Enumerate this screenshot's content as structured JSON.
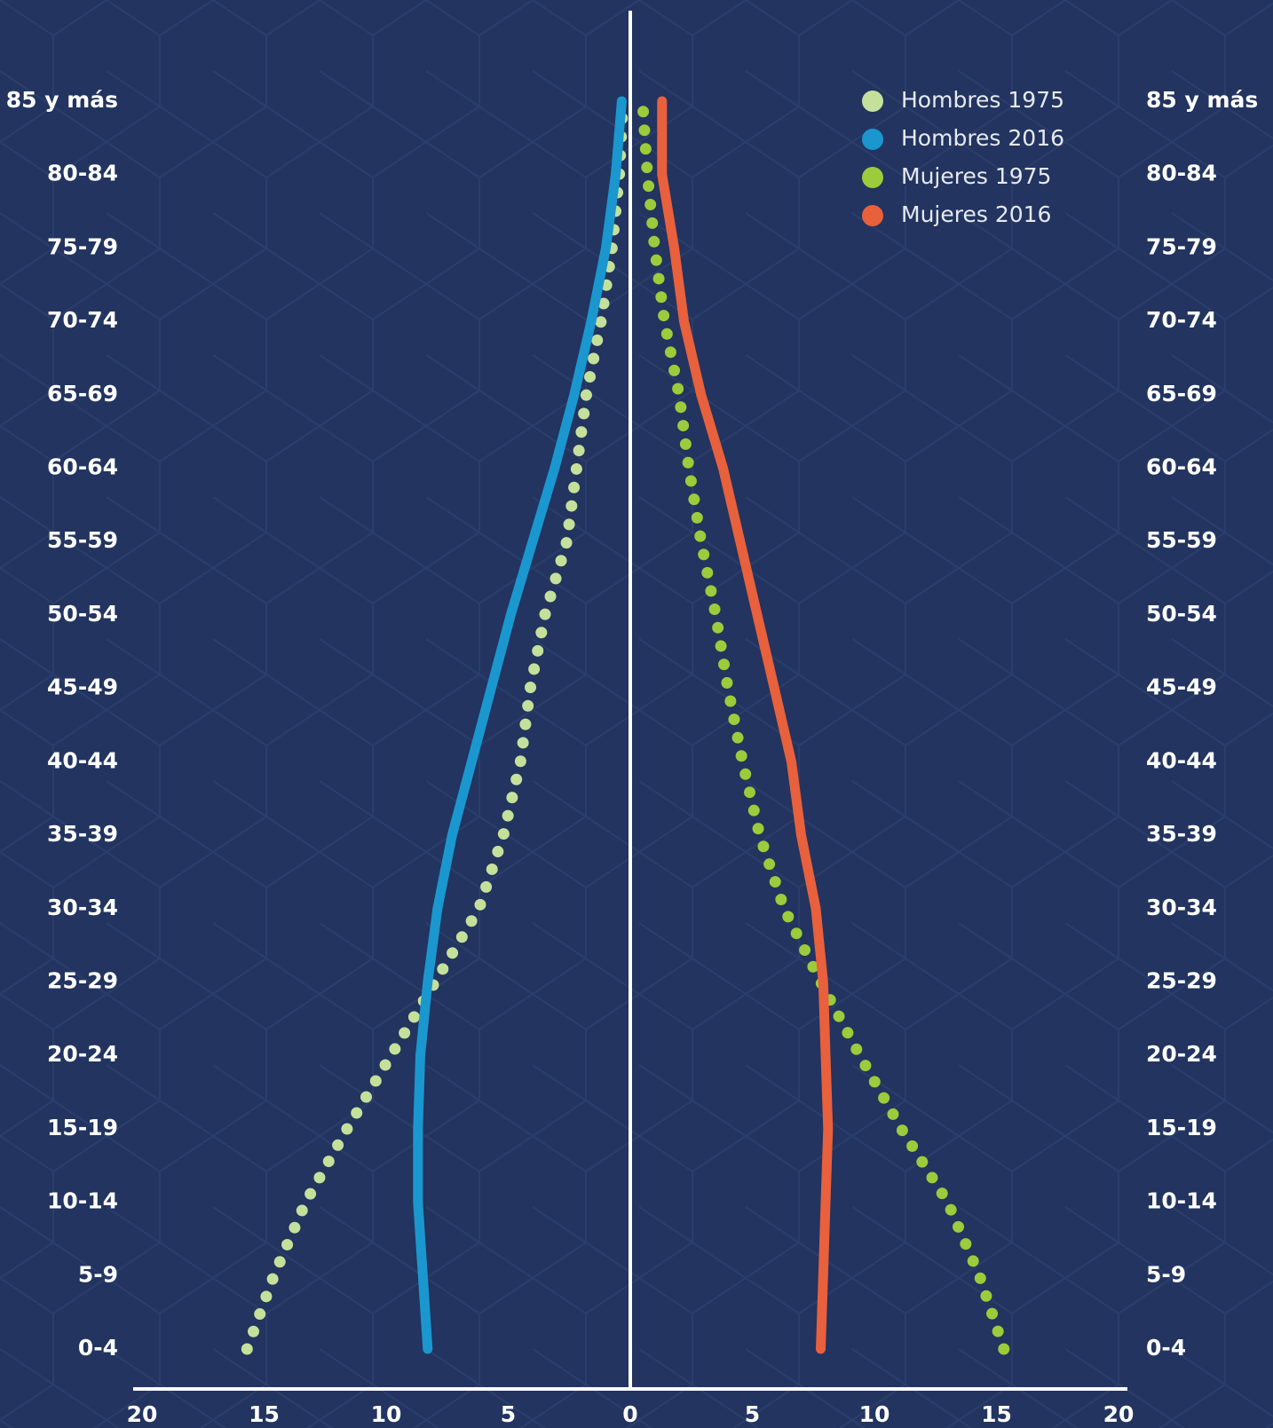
{
  "chart_data": {
    "type": "line",
    "orientation": "horizontal",
    "categories": [
      "0-4",
      "5-9",
      "10-14",
      "15-19",
      "20-24",
      "25-29",
      "30-34",
      "35-39",
      "40-44",
      "45-49",
      "50-54",
      "55-59",
      "60-64",
      "65-69",
      "70-74",
      "75-79",
      "80-84",
      "85 y más"
    ],
    "series": [
      {
        "name": "Hombres 1975",
        "color": "#c5e09b",
        "style": "dotted",
        "values": [
          -15.7,
          -14.6,
          -13.3,
          -11.6,
          -9.8,
          -8.0,
          -6.2,
          -5.2,
          -4.5,
          -4.1,
          -3.5,
          -2.6,
          -2.2,
          -1.8,
          -1.2,
          -0.75,
          -0.45,
          -0.3
        ]
      },
      {
        "name": "Hombres 2016",
        "color": "#1a97cf",
        "style": "solid",
        "values": [
          -8.3,
          -8.5,
          -8.7,
          -8.7,
          -8.6,
          -8.3,
          -7.9,
          -7.3,
          -6.5,
          -5.7,
          -4.9,
          -4.0,
          -3.1,
          -2.3,
          -1.6,
          -1.0,
          -0.6,
          -0.35
        ]
      },
      {
        "name": "Mujeres 1975",
        "color": "#9ccb3b",
        "style": "dotted",
        "values": [
          15.3,
          14.3,
          13.0,
          11.1,
          9.4,
          7.8,
          6.3,
          5.3,
          4.6,
          4.0,
          3.5,
          2.9,
          2.4,
          2.0,
          1.4,
          1.0,
          0.7,
          0.5
        ]
      },
      {
        "name": "Mujeres 2016",
        "color": "#e8603c",
        "style": "solid",
        "values": [
          7.8,
          7.9,
          8.0,
          8.1,
          8.0,
          7.9,
          7.6,
          7.0,
          6.6,
          5.9,
          5.2,
          4.5,
          3.8,
          2.9,
          2.2,
          1.8,
          1.3,
          1.3
        ]
      }
    ],
    "xlim": [
      -20,
      20
    ],
    "xticks": [
      {
        "value": -20,
        "label": "20"
      },
      {
        "value": -15,
        "label": "15"
      },
      {
        "value": -10,
        "label": "10"
      },
      {
        "value": -5,
        "label": "5"
      },
      0,
      5,
      10,
      15,
      20
    ],
    "legend": "upper right"
  }
}
